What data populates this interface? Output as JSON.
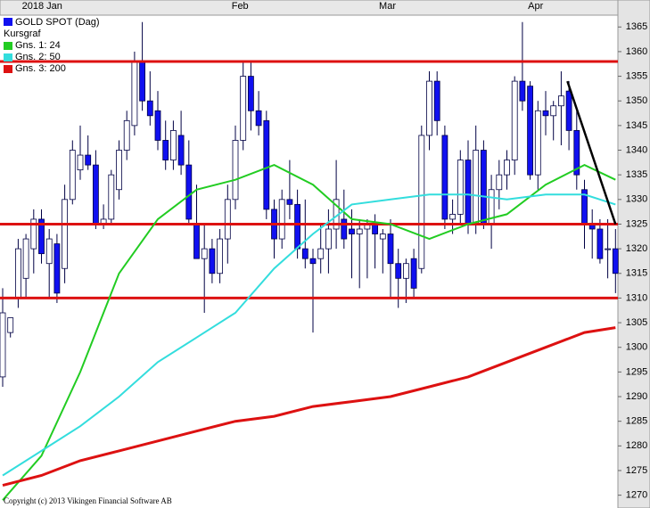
{
  "chart_data": {
    "type": "candlestick",
    "title": "GOLD SPOT (Dag)",
    "subtitle": "Kursgraf",
    "copyright": "Copyright (c) 2013 Vikingen Financial Software AB",
    "month_labels": [
      "2018 Jan",
      "Feb",
      "Mar",
      "Apr"
    ],
    "month_index": [
      7,
      31,
      50,
      69
    ],
    "ylim": [
      1267.4,
      1367.4
    ],
    "yticks": [
      1270,
      1275,
      1280,
      1285,
      1290,
      1295,
      1300,
      1305,
      1310,
      1315,
      1320,
      1325,
      1330,
      1335,
      1340,
      1345,
      1350,
      1355,
      1360,
      1365
    ],
    "up_color": "#ffffff",
    "down_color": "#1010f0",
    "open": [
      1294,
      1303,
      1310,
      1314,
      1320,
      1326,
      1317,
      1321,
      1316,
      1330,
      1336,
      1339,
      1337,
      1325,
      1326,
      1332,
      1340,
      1345,
      1358,
      1350,
      1348,
      1342,
      1338,
      1343,
      1337,
      1325,
      1318,
      1320,
      1315,
      1322,
      1330,
      1342,
      1355,
      1348,
      1346,
      1328,
      1322,
      1330,
      1329,
      1320,
      1318,
      1318,
      1320,
      1324,
      1326,
      1324,
      1323,
      1324,
      1325,
      1322,
      1323,
      1317,
      1314,
      1318,
      1316,
      1343,
      1354,
      1343,
      1326,
      1327,
      1338,
      1325,
      1340,
      1325,
      1332,
      1335,
      1338,
      1354,
      1353,
      1335,
      1348,
      1347,
      1349,
      1352,
      1344,
      1332,
      1325,
      1324,
      1320,
      1320
    ],
    "high": [
      1312,
      1306,
      1322,
      1323,
      1328,
      1328,
      1324,
      1323,
      1333,
      1342,
      1345,
      1343,
      1340,
      1329,
      1336,
      1342,
      1348,
      1360,
      1366,
      1356,
      1352,
      1346,
      1346,
      1348,
      1342,
      1333,
      1325,
      1322,
      1324,
      1333,
      1345,
      1358,
      1358,
      1352,
      1348,
      1330,
      1332,
      1338,
      1332,
      1330,
      1320,
      1325,
      1328,
      1338,
      1332,
      1328,
      1326,
      1326,
      1327,
      1324,
      1326,
      1320,
      1318,
      1320,
      1345,
      1356,
      1356,
      1345,
      1330,
      1340,
      1342,
      1345,
      1342,
      1335,
      1338,
      1340,
      1355,
      1366,
      1354,
      1350,
      1352,
      1350,
      1356,
      1354,
      1348,
      1334,
      1328,
      1326,
      1326,
      1324
    ],
    "low": [
      1292,
      1302,
      1308,
      1310,
      1315,
      1317,
      1310,
      1309,
      1313,
      1329,
      1334,
      1336,
      1324,
      1324,
      1325,
      1330,
      1338,
      1343,
      1348,
      1345,
      1340,
      1336,
      1336,
      1335,
      1325,
      1318,
      1307,
      1313,
      1313,
      1317,
      1328,
      1340,
      1344,
      1343,
      1326,
      1318,
      1320,
      1326,
      1318,
      1316,
      1303,
      1315,
      1315,
      1320,
      1320,
      1314,
      1312,
      1314,
      1316,
      1315,
      1310,
      1308,
      1309,
      1310,
      1315,
      1340,
      1343,
      1324,
      1323,
      1325,
      1323,
      1323,
      1324,
      1320,
      1328,
      1332,
      1335,
      1348,
      1334,
      1332,
      1343,
      1342,
      1341,
      1340,
      1332,
      1320,
      1318,
      1317,
      1314,
      1311
    ],
    "close": [
      1307,
      1306,
      1320,
      1322,
      1326,
      1319,
      1322,
      1311,
      1330,
      1340,
      1339,
      1337,
      1325,
      1326,
      1335,
      1340,
      1346,
      1358,
      1350,
      1347,
      1342,
      1338,
      1344,
      1337,
      1326,
      1318,
      1320,
      1315,
      1322,
      1330,
      1342,
      1355,
      1348,
      1345,
      1328,
      1322,
      1330,
      1329,
      1320,
      1318,
      1317,
      1320,
      1324,
      1330,
      1322,
      1323,
      1324,
      1325,
      1323,
      1323,
      1317,
      1314,
      1317,
      1312,
      1343,
      1354,
      1346,
      1326,
      1327,
      1338,
      1325,
      1340,
      1325,
      1332,
      1335,
      1338,
      1354,
      1350,
      1335,
      1348,
      1347,
      1349,
      1351,
      1344,
      1335,
      1325,
      1324,
      1318,
      1320,
      1315
    ],
    "ma_x": [
      0,
      5,
      10,
      15,
      20,
      25,
      30,
      35,
      40,
      45,
      50,
      55,
      60,
      65,
      70,
      75,
      79
    ],
    "series": [
      {
        "name": "Gns. 1: 24",
        "color": "#22cc22",
        "values": [
          1269,
          1278,
          1295,
          1315,
          1326,
          1332,
          1334,
          1337,
          1333,
          1326,
          1325,
          1322,
          1325,
          1327,
          1333,
          1337,
          1334
        ]
      },
      {
        "name": "Gns. 2: 50",
        "color": "#33dddd",
        "values": [
          1274,
          1279,
          1284,
          1290,
          1297,
          1302,
          1307,
          1316,
          1323,
          1329,
          1330,
          1331,
          1331,
          1330,
          1331,
          1331,
          1329
        ]
      },
      {
        "name": "Gns. 3: 200",
        "color": "#dd1111",
        "values": [
          1272,
          1274,
          1277,
          1279,
          1281,
          1283,
          1285,
          1286,
          1288,
          1289,
          1290,
          1292,
          1294,
          1297,
          1300,
          1303,
          1304
        ]
      }
    ],
    "levels": [
      1358,
      1325,
      1310
    ],
    "level_color": "#dd1111",
    "trendline": {
      "x": [
        72.8,
        79
      ],
      "values": [
        1354,
        1325
      ],
      "color": "#000000"
    }
  }
}
